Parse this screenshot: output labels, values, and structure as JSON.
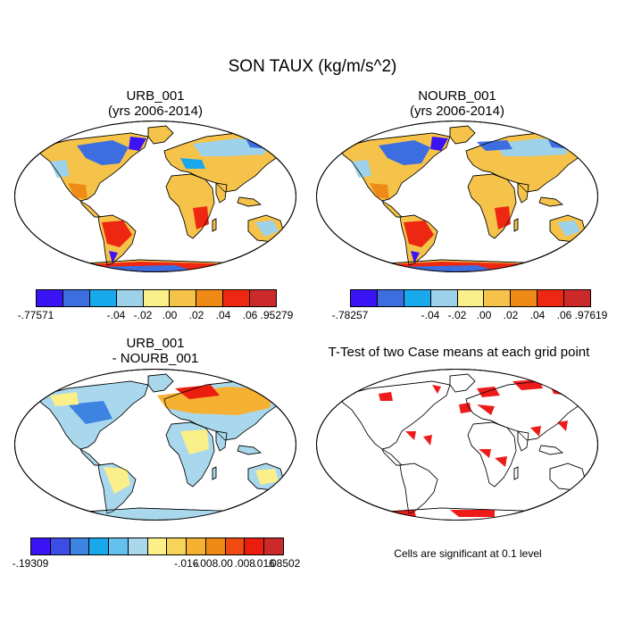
{
  "title": "SON TAUX (kg/m/s^2)",
  "panels": {
    "p1": {
      "title_line1": "URB_001",
      "title_line2": "(yrs 2006-2014)"
    },
    "p2": {
      "title_line1": "NOURB_001",
      "title_line2": "(yrs 2006-2014)"
    },
    "p3": {
      "title_line1": "URB_001",
      "title_line2": "- NOURB_001"
    },
    "p4": {
      "title_line1": "T-Test of two Case means at each grid point"
    }
  },
  "colorbars": {
    "cb1": {
      "labels": [
        "-.77571",
        "-.04",
        "-.02",
        ".00",
        ".02",
        ".04",
        ".06",
        ".95279"
      ],
      "colors": [
        "#3b14f5",
        "#3c6ee0",
        "#18a8ec",
        "#9ed2ea",
        "#fbef8a",
        "#f6c34a",
        "#f08a17",
        "#ee2712",
        "#cc2a2a"
      ]
    },
    "cb2": {
      "labels": [
        "-.78257",
        "-.04",
        "-.02",
        ".00",
        ".02",
        ".04",
        ".06",
        ".97619"
      ],
      "colors": [
        "#3b14f5",
        "#3c6ee0",
        "#18a8ec",
        "#9ed2ea",
        "#fbef8a",
        "#f6c34a",
        "#f08a17",
        "#ee2712",
        "#cc2a2a"
      ]
    },
    "cb3": {
      "labels": [
        "-.19309",
        "-.016",
        "-.008",
        ".00",
        ".008",
        ".016",
        ".08502"
      ],
      "colors": [
        "#3b14f5",
        "#3c4de6",
        "#3c83e2",
        "#18a8ec",
        "#66c0ee",
        "#a9d8ec",
        "#fbef8a",
        "#f8d35a",
        "#f6b132",
        "#f08a17",
        "#f04a10",
        "#ea1d0e",
        "#cc2a2a"
      ]
    }
  },
  "footnote": "Cells are significant at 0.1 level"
}
